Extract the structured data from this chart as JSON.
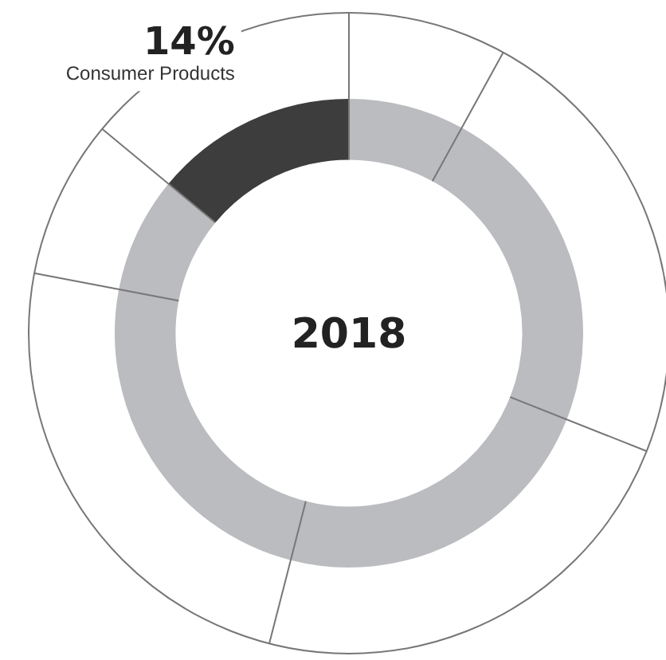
{
  "chart_data": {
    "type": "donut",
    "title": "2018",
    "categories": [
      null,
      null,
      null,
      null,
      null,
      "Consumer Products"
    ],
    "values": [
      8,
      23,
      23,
      24,
      8,
      14
    ],
    "colors": [
      "#bbbcbf",
      "#bbbcbf",
      "#bbbcbf",
      "#bbbcbf",
      "#bbbcbf",
      "#3d3d3d"
    ],
    "value_labels": [
      null,
      null,
      null,
      null,
      null,
      "14%"
    ]
  }
}
